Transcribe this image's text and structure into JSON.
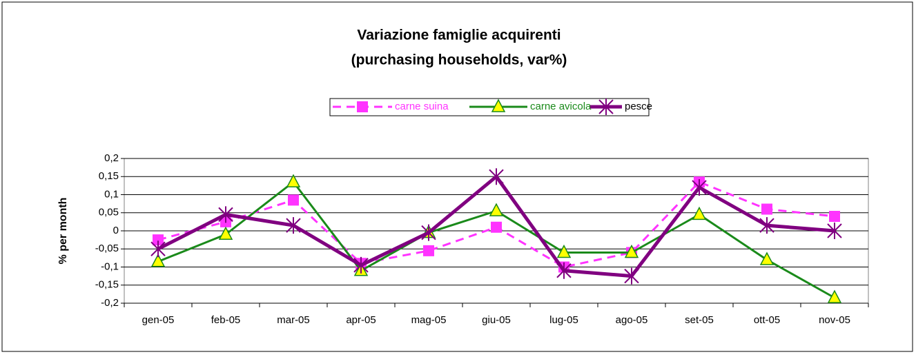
{
  "chart_data": {
    "type": "line",
    "title": "Variazione famiglie acquirenti",
    "subtitle": "(purchasing households, var%)",
    "y_label": "% per month",
    "categories": [
      "gen-05",
      "feb-05",
      "mar-05",
      "apr-05",
      "mag-05",
      "giu-05",
      "lug-05",
      "ago-05",
      "set-05",
      "ott-05",
      "nov-05"
    ],
    "series": [
      {
        "name": "carne suina",
        "color": "#ff33ff",
        "marker": "square",
        "dash": true,
        "values": [
          -0.025,
          0.025,
          0.085,
          -0.09,
          -0.055,
          0.01,
          -0.1,
          -0.06,
          0.135,
          0.06,
          0.04
        ]
      },
      {
        "name": "carne avicola",
        "color": "#1a8a1a",
        "marker": "triangle",
        "dash": false,
        "values": [
          -0.085,
          -0.01,
          0.135,
          -0.11,
          -0.005,
          0.055,
          -0.06,
          -0.06,
          0.045,
          -0.08,
          -0.185
        ]
      },
      {
        "name": "pesce",
        "color": "#800080",
        "marker": "star",
        "dash": false,
        "values": [
          -0.05,
          0.045,
          0.015,
          -0.095,
          -0.005,
          0.15,
          -0.11,
          -0.125,
          0.12,
          0.015,
          0.0
        ]
      }
    ],
    "ylim": [
      -0.2,
      0.2
    ],
    "yticks": [
      {
        "value": -0.2,
        "label": "-0,2"
      },
      {
        "value": -0.15,
        "label": "-0,15"
      },
      {
        "value": -0.1,
        "label": "-0,1"
      },
      {
        "value": -0.05,
        "label": "-0,05"
      },
      {
        "value": 0,
        "label": "0"
      },
      {
        "value": 0.05,
        "label": "0,05"
      },
      {
        "value": 0.1,
        "label": "0,1"
      },
      {
        "value": 0.15,
        "label": "0,15"
      },
      {
        "value": 0.2,
        "label": "0,2"
      }
    ],
    "grid": true
  }
}
